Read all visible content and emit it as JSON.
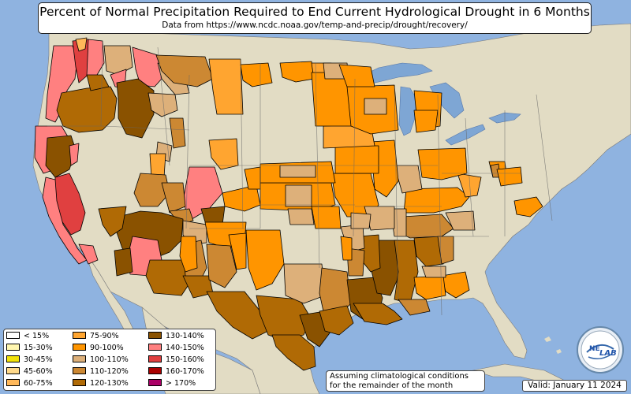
{
  "title": "Percent of Normal Precipitation Required to End Current Hydrological Drought in 6 Months",
  "subtitle": "Data from https://www.ncdc.noaa.gov/temp-and-precip/drought/recovery/",
  "note_line1": "Assuming climatological conditions",
  "note_line2": "for the remainder of the month",
  "valid": "Valid: January 11 2024",
  "logo_text": {
    "ne": "NE",
    "lab": "LAB"
  },
  "colors": {
    "ocean": "#8fb3e0",
    "land": "#e2dcc4",
    "great_lakes": "#7ea6d4",
    "state_border": "#666666",
    "county_outline": "#000000"
  },
  "legend": [
    {
      "label": "< 15%",
      "color": "#ffffff"
    },
    {
      "label": "15-30%",
      "color": "#fff6b0"
    },
    {
      "label": "30-45%",
      "color": "#f2e20a"
    },
    {
      "label": "45-60%",
      "color": "#ffd98a"
    },
    {
      "label": "60-75%",
      "color": "#ffb85a"
    },
    {
      "label": "75-90%",
      "color": "#ffa530"
    },
    {
      "label": "90-100%",
      "color": "#ff9500"
    },
    {
      "label": "100-110%",
      "color": "#ddb07a"
    },
    {
      "label": "110-120%",
      "color": "#cc8833"
    },
    {
      "label": "120-130%",
      "color": "#b06a05"
    },
    {
      "label": "130-140%",
      "color": "#8a5200"
    },
    {
      "label": "140-150%",
      "color": "#ff8080"
    },
    {
      "label": "150-160%",
      "color": "#e04040"
    },
    {
      "label": "160-170%",
      "color": "#aa0000"
    },
    {
      "label": "> 170%",
      "color": "#aa0066"
    }
  ]
}
